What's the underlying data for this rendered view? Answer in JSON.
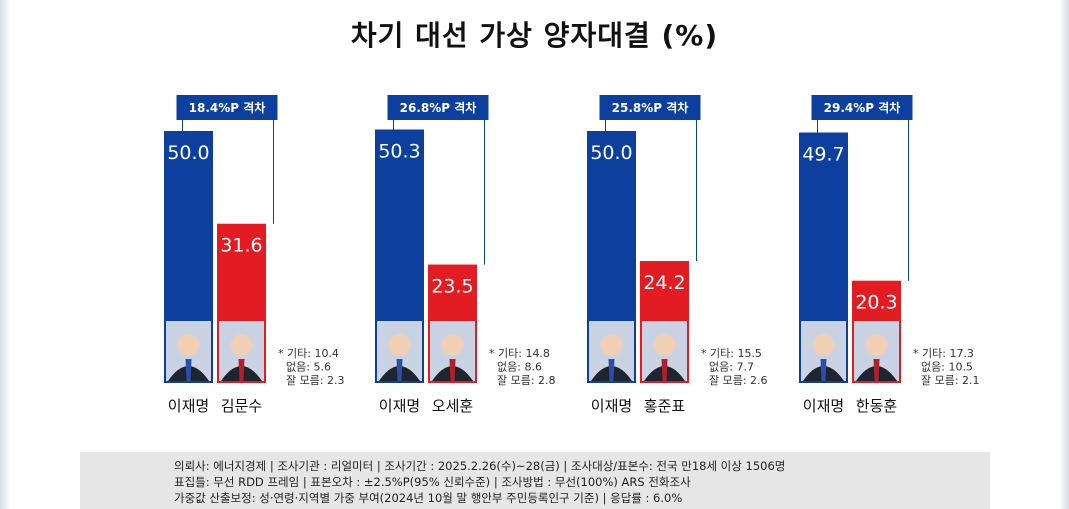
{
  "chart_data": {
    "type": "bar",
    "title": "차기 대선 가상 양자대결 (%)",
    "ylim": [
      0,
      50.0
    ],
    "colors": {
      "lee": "#0d3f9e",
      "opponent": "#e31c24",
      "gap": "#0d3f9e"
    },
    "matchups": [
      {
        "gap_label": "18.4%P 격차",
        "candidates": [
          {
            "name": "이재명",
            "value": 50.0,
            "value_label": "50.0",
            "party": "lee"
          },
          {
            "name": "김문수",
            "value": 31.6,
            "value_label": "31.6",
            "party": "opponent"
          }
        ],
        "notes": [
          "* 기타: 10.4",
          "없음: 5.6",
          "잘 모름: 2.3"
        ]
      },
      {
        "gap_label": "26.8%P 격차",
        "candidates": [
          {
            "name": "이재명",
            "value": 50.3,
            "value_label": "50.3",
            "party": "lee"
          },
          {
            "name": "오세훈",
            "value": 23.5,
            "value_label": "23.5",
            "party": "opponent"
          }
        ],
        "notes": [
          "* 기타: 14.8",
          "없음: 8.6",
          "잘 모름: 2.8"
        ]
      },
      {
        "gap_label": "25.8%P 격차",
        "candidates": [
          {
            "name": "이재명",
            "value": 50.0,
            "value_label": "50.0",
            "party": "lee"
          },
          {
            "name": "홍준표",
            "value": 24.2,
            "value_label": "24.2",
            "party": "opponent"
          }
        ],
        "notes": [
          "* 기타: 15.5",
          "없음: 7.7",
          "잘 모름: 2.6"
        ]
      },
      {
        "gap_label": "29.4%P 격차",
        "candidates": [
          {
            "name": "이재명",
            "value": 49.7,
            "value_label": "49.7",
            "party": "lee"
          },
          {
            "name": "한동훈",
            "value": 20.3,
            "value_label": "20.3",
            "party": "opponent"
          }
        ],
        "notes": [
          "* 기타: 17.3",
          "없음: 10.5",
          "잘 모름: 2.1"
        ]
      }
    ]
  },
  "footer": {
    "line1": "의뢰사: 에너지경제 | 조사기관 : 리얼미터  |  조사기간 : 2025.2.26(수)~28(금) | 조사대상/표본수:  전국 만18세 이상 1506명",
    "line2": "표집틀: 무선 RDD 프레임 | 표본오차 : ±2.5%P(95% 신뢰수준) | 조사방법 : 무선(100%) ARS 전화조사",
    "line3": "가중값 산출보정: 성·연령·지역별 가중 부여(2024년 10월 말 행안부 주민등록인구 기준) | 응답률 : 6.0%"
  }
}
